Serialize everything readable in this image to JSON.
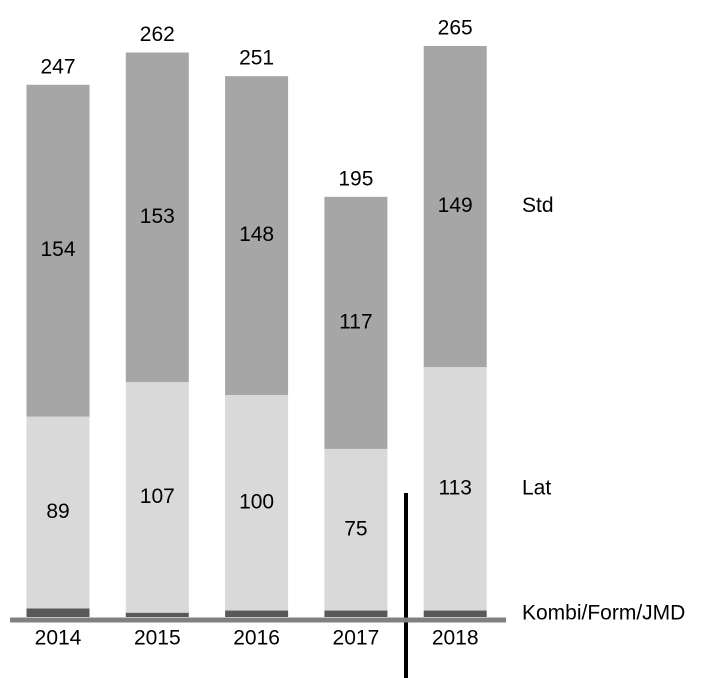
{
  "chart_data": {
    "type": "stacked-bar",
    "categories": [
      "2014",
      "2015",
      "2016",
      "2017",
      "2018"
    ],
    "series": [
      {
        "name": "Kombi/Form/JMD",
        "color": "#595959",
        "values": [
          4,
          2,
          3,
          3,
          3
        ]
      },
      {
        "name": "Lat",
        "color": "#d9d9d9",
        "values": [
          89,
          107,
          100,
          75,
          113
        ]
      },
      {
        "name": "Std",
        "color": "#a6a6a6",
        "values": [
          154,
          153,
          148,
          117,
          149
        ]
      }
    ],
    "totals": [
      247,
      262,
      251,
      195,
      265
    ]
  }
}
